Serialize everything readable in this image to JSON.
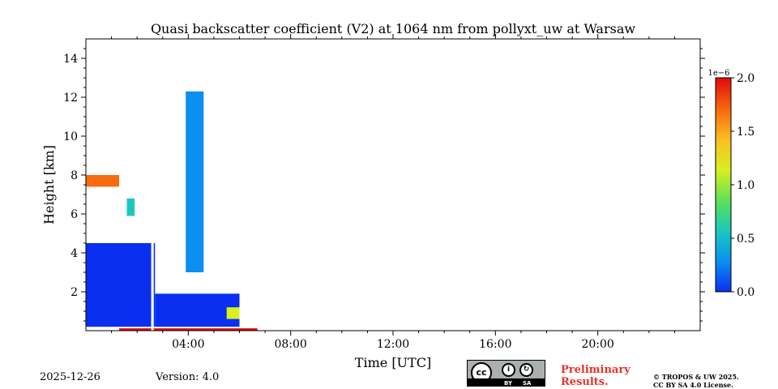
{
  "chart_data": {
    "type": "heatmap",
    "title": "Quasi backscatter coefficient (V2) at 1064 nm from pollyxt_uw at Warsaw",
    "xlabel": "Time [UTC]",
    "ylabel": "Height [km]",
    "xlim_hours": [
      0,
      24
    ],
    "ylim_km": [
      0,
      15
    ],
    "x_ticks": [
      {
        "value": 4,
        "label": "04:00"
      },
      {
        "value": 8,
        "label": "08:00"
      },
      {
        "value": 12,
        "label": "12:00"
      },
      {
        "value": 16,
        "label": "16:00"
      },
      {
        "value": 20,
        "label": "20:00"
      }
    ],
    "y_ticks": [
      {
        "value": 2,
        "label": "2"
      },
      {
        "value": 4,
        "label": "4"
      },
      {
        "value": 6,
        "label": "6"
      },
      {
        "value": 8,
        "label": "8"
      },
      {
        "value": 10,
        "label": "10"
      },
      {
        "value": 12,
        "label": "12"
      },
      {
        "value": 14,
        "label": "14"
      }
    ],
    "colorbar": {
      "min": 0.0,
      "max": 2.0,
      "exponent_label": "1e−6",
      "ticks": [
        {
          "value": 0.0,
          "label": "0.0"
        },
        {
          "value": 0.5,
          "label": "0.5"
        },
        {
          "value": 1.0,
          "label": "1.0"
        },
        {
          "value": 1.5,
          "label": "1.5"
        },
        {
          "value": 2.0,
          "label": "2.0"
        }
      ],
      "colormap": [
        "#0a2ff0",
        "#0b8ff0",
        "#19c8c0",
        "#5ae05a",
        "#d8f020",
        "#f8c020",
        "#f86a10",
        "#e00a0a"
      ]
    },
    "regions": [
      {
        "name": "boundary-layer",
        "t0": 0.0,
        "t1": 2.7,
        "h0": 0.2,
        "h1": 4.5,
        "value": 0.05
      },
      {
        "name": "boundary-layer-2",
        "t0": 2.7,
        "t1": 6.0,
        "h0": 0.2,
        "h1": 1.9,
        "value": 0.1
      },
      {
        "name": "boundary-layer-top",
        "t0": 5.5,
        "t1": 6.0,
        "h0": 0.6,
        "h1": 1.2,
        "value": 1.0
      },
      {
        "name": "surface-layer",
        "t0": 1.3,
        "t1": 6.7,
        "h0": 0.0,
        "h1": 0.12,
        "value": 2.0
      },
      {
        "name": "cirrus-column",
        "t0": 3.9,
        "t1": 4.6,
        "h0": 3.0,
        "h1": 12.3,
        "value": 0.15
      },
      {
        "name": "cloud-7km",
        "t0": 0.0,
        "t1": 1.3,
        "h0": 7.4,
        "h1": 8.0,
        "value": 1.6
      },
      {
        "name": "cloud-6km",
        "t0": 1.6,
        "t1": 1.9,
        "h0": 5.9,
        "h1": 6.8,
        "value": 0.7
      }
    ],
    "no_data_gap": {
      "t0": 2.55,
      "t1": 2.65,
      "value": null
    }
  },
  "footer": {
    "date": "2025-12-26",
    "version": "Version: 4.0",
    "preliminary_line1": "Preliminary",
    "preliminary_line2": "Results.",
    "copyright_line1": "© TROPOS & UW 2025.",
    "copyright_line2": "CC BY SA 4.0 License.",
    "cc_by": "BY",
    "cc_sa": "SA",
    "cc_mark": "cc"
  }
}
